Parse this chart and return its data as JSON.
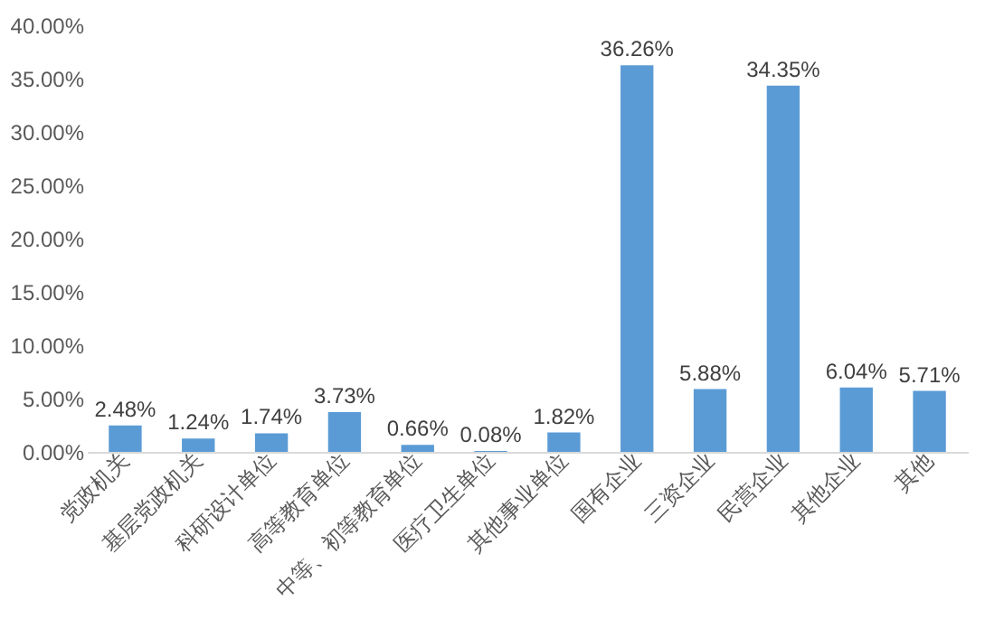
{
  "chart_data": {
    "type": "bar",
    "categories": [
      "党政机关",
      "基层党政机关",
      "科研设计单位",
      "高等教育单位",
      "中等、初等教育单位",
      "医疗卫生单位",
      "其他事业单位",
      "国有企业",
      "三资企业",
      "民营企业",
      "其他企业",
      "其他"
    ],
    "values": [
      2.48,
      1.24,
      1.74,
      3.73,
      0.66,
      0.08,
      1.82,
      36.26,
      5.88,
      34.35,
      6.04,
      5.71
    ],
    "value_labels": [
      "2.48%",
      "1.24%",
      "1.74%",
      "3.73%",
      "0.66%",
      "0.08%",
      "1.82%",
      "36.26%",
      "5.88%",
      "34.35%",
      "6.04%",
      "5.71%"
    ],
    "color": "#5b9bd5",
    "ylim": [
      0,
      40
    ],
    "yticks": [
      {
        "value": 0,
        "label": "0.00%"
      },
      {
        "value": 5,
        "label": "5.00%"
      },
      {
        "value": 10,
        "label": "10.00%"
      },
      {
        "value": 15,
        "label": "15.00%"
      },
      {
        "value": 20,
        "label": "20.00%"
      },
      {
        "value": 25,
        "label": "25.00%"
      },
      {
        "value": 30,
        "label": "30.00%"
      },
      {
        "value": 35,
        "label": "35.00%"
      },
      {
        "value": 40,
        "label": "40.00%"
      }
    ],
    "grid": false
  }
}
